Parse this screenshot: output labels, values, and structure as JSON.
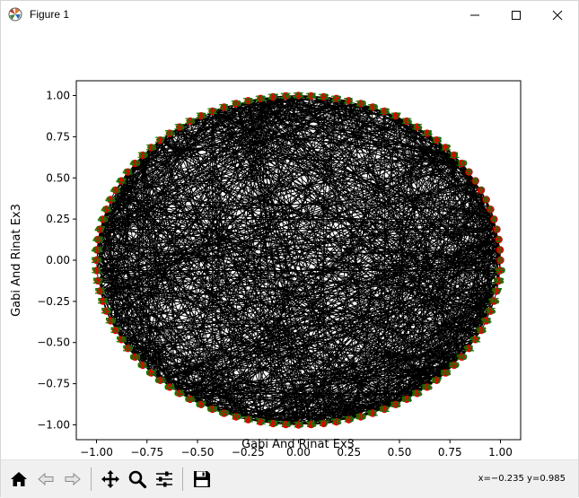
{
  "window": {
    "title": "Figure 1",
    "icons": {
      "app": "matplotlib-logo-icon",
      "minimize": "minimize-icon",
      "maximize": "maximize-icon",
      "close": "close-icon"
    }
  },
  "toolbar": {
    "buttons": [
      {
        "name": "home-button",
        "icon": "home-icon"
      },
      {
        "name": "back-button",
        "icon": "back-arrow-icon"
      },
      {
        "name": "forward-button",
        "icon": "forward-arrow-icon"
      },
      {
        "name": "pan-button",
        "icon": "move-icon"
      },
      {
        "name": "zoom-button",
        "icon": "magnifier-icon"
      },
      {
        "name": "configure-subplots-button",
        "icon": "sliders-icon"
      },
      {
        "name": "save-button",
        "icon": "floppy-disk-icon"
      }
    ],
    "coordinates": "x=−0.235 y=0.985"
  },
  "chart_data": {
    "type": "network",
    "xlabel": "Gabi And Rinat Ex3",
    "ylabel": "Gabi And Rinat Ex3",
    "xlim": [
      -1.1,
      1.1
    ],
    "ylim": [
      -1.09,
      1.09
    ],
    "xticks": [
      "−1.00",
      "−0.75",
      "−0.50",
      "−0.25",
      "0.00",
      "0.25",
      "0.50",
      "0.75",
      "1.00"
    ],
    "yticks": [
      "−1.00",
      "−0.75",
      "−0.50",
      "−0.25",
      "0.00",
      "0.25",
      "0.50",
      "0.75",
      "1.00"
    ],
    "xtick_values": [
      -1,
      -0.75,
      -0.5,
      -0.25,
      0,
      0.25,
      0.5,
      0.75,
      1
    ],
    "ytick_values": [
      -1,
      -0.75,
      -0.5,
      -0.25,
      0,
      0.25,
      0.5,
      0.75,
      1
    ],
    "nodes": {
      "count": 100,
      "labels": [
        "0",
        "1",
        "2",
        "3",
        "4",
        "5",
        "6",
        "7",
        "8",
        "9",
        "10",
        "11",
        "12",
        "13",
        "14",
        "15",
        "16",
        "17",
        "18",
        "19",
        "20",
        "21",
        "22",
        "23",
        "24",
        "25",
        "26",
        "27",
        "28",
        "29",
        "30",
        "31",
        "32",
        "33",
        "34",
        "35",
        "36",
        "37",
        "38",
        "39",
        "40",
        "41",
        "42",
        "43",
        "44",
        "45",
        "46",
        "47",
        "48",
        "49",
        "50",
        "51",
        "52",
        "53",
        "54",
        "55",
        "56",
        "57",
        "58",
        "59",
        "60",
        "61",
        "62",
        "63",
        "64",
        "65",
        "66",
        "67",
        "68",
        "69",
        "70",
        "71",
        "72",
        "73",
        "74",
        "75",
        "76",
        "77",
        "78",
        "79",
        "80",
        "81",
        "82",
        "83",
        "84",
        "85",
        "86",
        "87",
        "88",
        "89",
        "90",
        "91",
        "92",
        "93",
        "94",
        "95",
        "96",
        "97",
        "98",
        "99"
      ],
      "layout": "circular",
      "node_color": "#e00000",
      "label_color": "#008000",
      "edge_color": "#000000"
    }
  }
}
